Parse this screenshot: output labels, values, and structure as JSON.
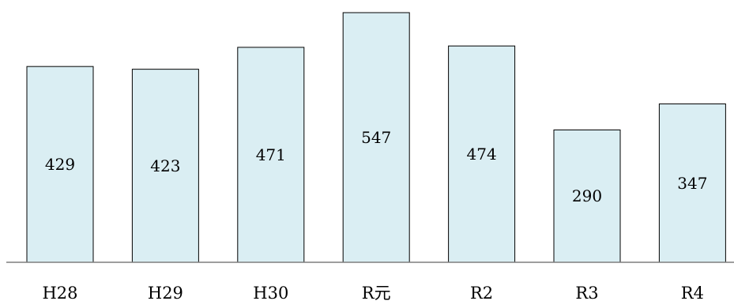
{
  "chart_data": {
    "type": "bar",
    "categories": [
      "H28",
      "H29",
      "H30",
      "R元",
      "R2",
      "R3",
      "R4"
    ],
    "values": [
      429,
      423,
      471,
      547,
      474,
      290,
      347
    ],
    "title": "",
    "xlabel": "",
    "ylabel": "",
    "ylim": [
      0,
      547
    ],
    "grid": false,
    "legend": "none",
    "colors": {
      "bar_fill": "#daeef3",
      "bar_stroke": "#000000",
      "baseline": "#7f7f7f"
    }
  }
}
